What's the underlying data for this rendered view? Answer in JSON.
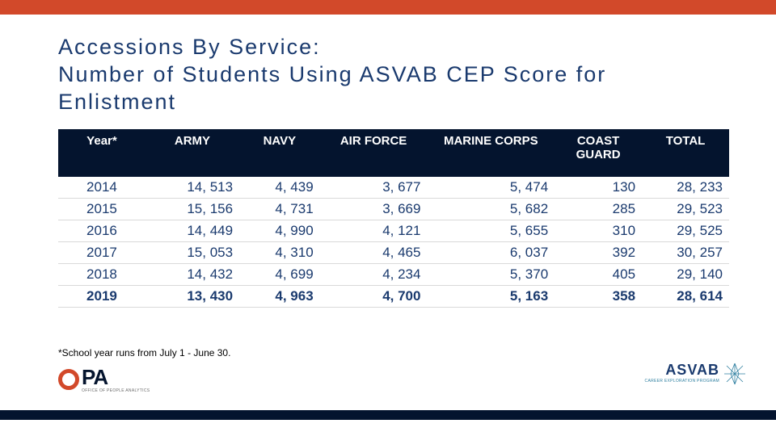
{
  "title_line1": "Accessions By Service:",
  "title_line2": "Number of Students Using ASVAB CEP Score for Enlistment",
  "table": {
    "type": "table",
    "columns": [
      "Year*",
      "ARMY",
      "NAVY",
      "AIR FORCE",
      "MARINE CORPS",
      "COAST GUARD",
      "TOTAL"
    ],
    "column_widths_pct": [
      13,
      14,
      12,
      16,
      19,
      13,
      13
    ],
    "header_bg": "#04142e",
    "header_fg": "#ffffff",
    "header_fontsize": 15,
    "body_fg": "#1a3a6e",
    "body_fontsize": 17,
    "row_border_color": "#d9d9d9",
    "align": [
      "center",
      "right",
      "right",
      "right",
      "right",
      "right",
      "right"
    ],
    "rows": [
      {
        "year": "2014",
        "army": "14, 513",
        "navy": "4, 439",
        "af": "3, 677",
        "mc": "5, 474",
        "cg": "130",
        "total": "28, 233",
        "bold": false
      },
      {
        "year": "2015",
        "army": "15, 156",
        "navy": "4, 731",
        "af": "3, 669",
        "mc": "5, 682",
        "cg": "285",
        "total": "29, 523",
        "bold": false
      },
      {
        "year": "2016",
        "army": "14, 449",
        "navy": "4, 990",
        "af": "4, 121",
        "mc": "5, 655",
        "cg": "310",
        "total": "29, 525",
        "bold": false
      },
      {
        "year": "2017",
        "army": "15, 053",
        "navy": "4, 310",
        "af": "4, 465",
        "mc": "6, 037",
        "cg": "392",
        "total": "30, 257",
        "bold": false
      },
      {
        "year": "2018",
        "army": "14, 432",
        "navy": "4, 699",
        "af": "4, 234",
        "mc": "5, 370",
        "cg": "405",
        "total": "29, 140",
        "bold": false
      },
      {
        "year": "2019",
        "army": "13, 430",
        "navy": "4, 963",
        "af": "4, 700",
        "mc": "5, 163",
        "cg": "358",
        "total": "28, 614",
        "bold": true
      }
    ]
  },
  "footnote": "*School year runs from July 1 - June 30.",
  "logo_opa_text": "PA",
  "logo_opa_sub": "OFFICE OF PEOPLE ANALYTICS",
  "logo_asvab_text": "ASVAB",
  "logo_asvab_sub": "CAREER EXPLORATION PROGRAM",
  "colors": {
    "accent": "#d2492a",
    "navy_dark": "#04142e",
    "navy_text": "#1a3a6e",
    "star": "#2e7fa0"
  }
}
